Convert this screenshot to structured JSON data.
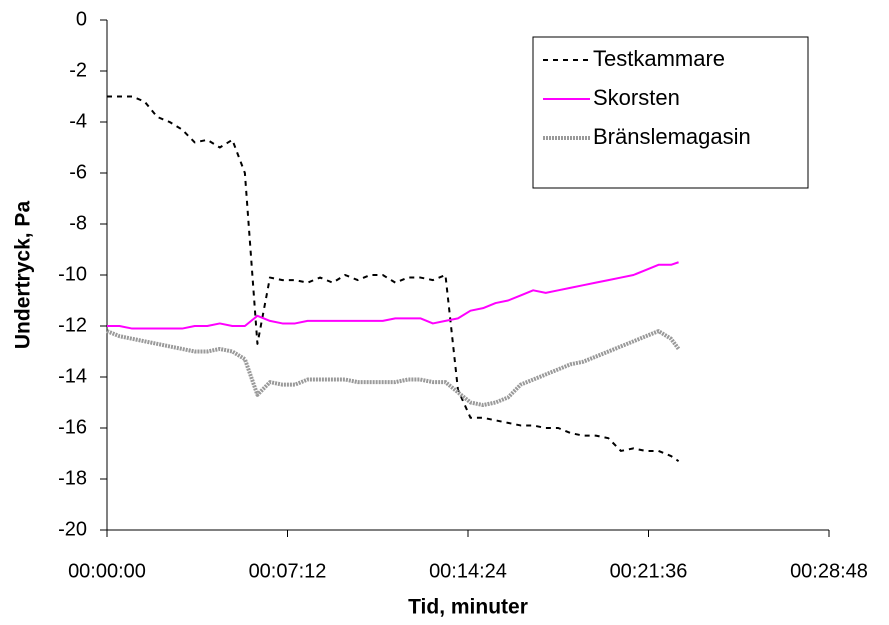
{
  "chart_data": {
    "type": "line",
    "x_label": "Tid, minuter",
    "y_label": "Undertryck, Pa",
    "x": [
      0,
      0.5,
      1,
      1.5,
      2,
      2.5,
      3,
      3.5,
      4,
      4.5,
      5,
      5.5,
      6,
      6.5,
      7,
      7.5,
      8,
      8.5,
      9,
      9.5,
      10,
      10.5,
      11,
      11.5,
      12,
      12.5,
      13,
      13.5,
      14,
      14.5,
      15,
      15.5,
      16,
      16.5,
      17,
      17.5,
      18,
      18.5,
      19,
      19.5,
      20,
      20.5,
      21,
      21.5,
      22,
      22.5,
      22.8
    ],
    "series": [
      {
        "name": "Testkammare",
        "color": "#000000",
        "dash": "5,5",
        "width": 2,
        "values": [
          -3.0,
          -3.0,
          -3.0,
          -3.2,
          -3.8,
          -4.0,
          -4.3,
          -4.8,
          -4.7,
          -5.0,
          -4.7,
          -6.0,
          -12.7,
          -10.1,
          -10.2,
          -10.2,
          -10.3,
          -10.1,
          -10.3,
          -10.0,
          -10.2,
          -10.0,
          -10.0,
          -10.3,
          -10.1,
          -10.1,
          -10.2,
          -10.0,
          -14.5,
          -15.6,
          -15.6,
          -15.7,
          -15.8,
          -15.9,
          -15.9,
          -16.0,
          -16.0,
          -16.2,
          -16.3,
          -16.3,
          -16.4,
          -16.9,
          -16.8,
          -16.9,
          -16.9,
          -17.1,
          -17.3
        ]
      },
      {
        "name": "Skorsten",
        "color": "#ff00ff",
        "dash": "none",
        "width": 2,
        "values": [
          -12.0,
          -12.0,
          -12.1,
          -12.1,
          -12.1,
          -12.1,
          -12.1,
          -12.0,
          -12.0,
          -11.9,
          -12.0,
          -12.0,
          -11.6,
          -11.8,
          -11.9,
          -11.9,
          -11.8,
          -11.8,
          -11.8,
          -11.8,
          -11.8,
          -11.8,
          -11.8,
          -11.7,
          -11.7,
          -11.7,
          -11.9,
          -11.8,
          -11.7,
          -11.4,
          -11.3,
          -11.1,
          -11.0,
          -10.8,
          -10.6,
          -10.7,
          -10.6,
          -10.5,
          -10.4,
          -10.3,
          -10.2,
          -10.1,
          -10.0,
          -9.8,
          -9.6,
          -9.6,
          -9.5
        ]
      },
      {
        "name": "Bränslemagasin",
        "color": "#9a9a9a",
        "dash": "2,1",
        "width": 4,
        "values": [
          -12.2,
          -12.4,
          -12.5,
          -12.6,
          -12.7,
          -12.8,
          -12.9,
          -13.0,
          -13.0,
          -12.9,
          -13.0,
          -13.3,
          -14.7,
          -14.2,
          -14.3,
          -14.3,
          -14.1,
          -14.1,
          -14.1,
          -14.1,
          -14.2,
          -14.2,
          -14.2,
          -14.2,
          -14.1,
          -14.1,
          -14.2,
          -14.2,
          -14.6,
          -15.0,
          -15.1,
          -15.0,
          -14.8,
          -14.3,
          -14.1,
          -13.9,
          -13.7,
          -13.5,
          -13.4,
          -13.2,
          -13.0,
          -12.8,
          -12.6,
          -12.4,
          -12.2,
          -12.5,
          -12.9
        ]
      }
    ],
    "xlim": [
      0,
      28.8
    ],
    "xticks": [
      {
        "value": 0,
        "label": "00:00:00"
      },
      {
        "value": 7.2,
        "label": "00:07:12"
      },
      {
        "value": 14.4,
        "label": "00:14:24"
      },
      {
        "value": 21.6,
        "label": "00:21:36"
      },
      {
        "value": 28.8,
        "label": "00:28:48"
      }
    ],
    "ylim": [
      -20,
      0
    ],
    "yticks": [
      0,
      -2,
      -4,
      -6,
      -8,
      -10,
      -12,
      -14,
      -16,
      -18,
      -20
    ],
    "grid": false,
    "legend": "top-right"
  }
}
